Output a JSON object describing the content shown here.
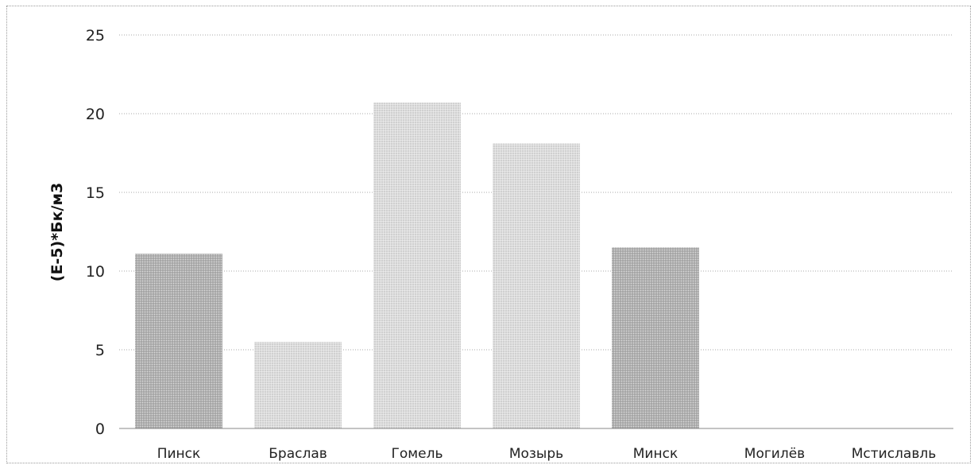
{
  "chart_data": {
    "type": "bar",
    "title": "",
    "xlabel": "",
    "ylabel": "(E-5)*Бк/м3",
    "categories": [
      "Пинск",
      "Браслав",
      "Гомель",
      "Мозырь",
      "Минск",
      "Могилёв",
      "Мстиславль"
    ],
    "values": [
      11.1,
      5.5,
      20.7,
      18.1,
      11.5,
      0,
      0
    ],
    "ylim": [
      0,
      25
    ],
    "yticks": [
      "0",
      "5",
      "10",
      "15",
      "20",
      "25"
    ],
    "grid": true,
    "legend": "none",
    "colors": {
      "bar_dark": "#b4b4b4",
      "bar_light": "#dcdcdc",
      "grid": "#a8a8a8"
    },
    "bar_shades": [
      "dark",
      "light",
      "light",
      "light",
      "dark",
      "light",
      "light"
    ]
  }
}
